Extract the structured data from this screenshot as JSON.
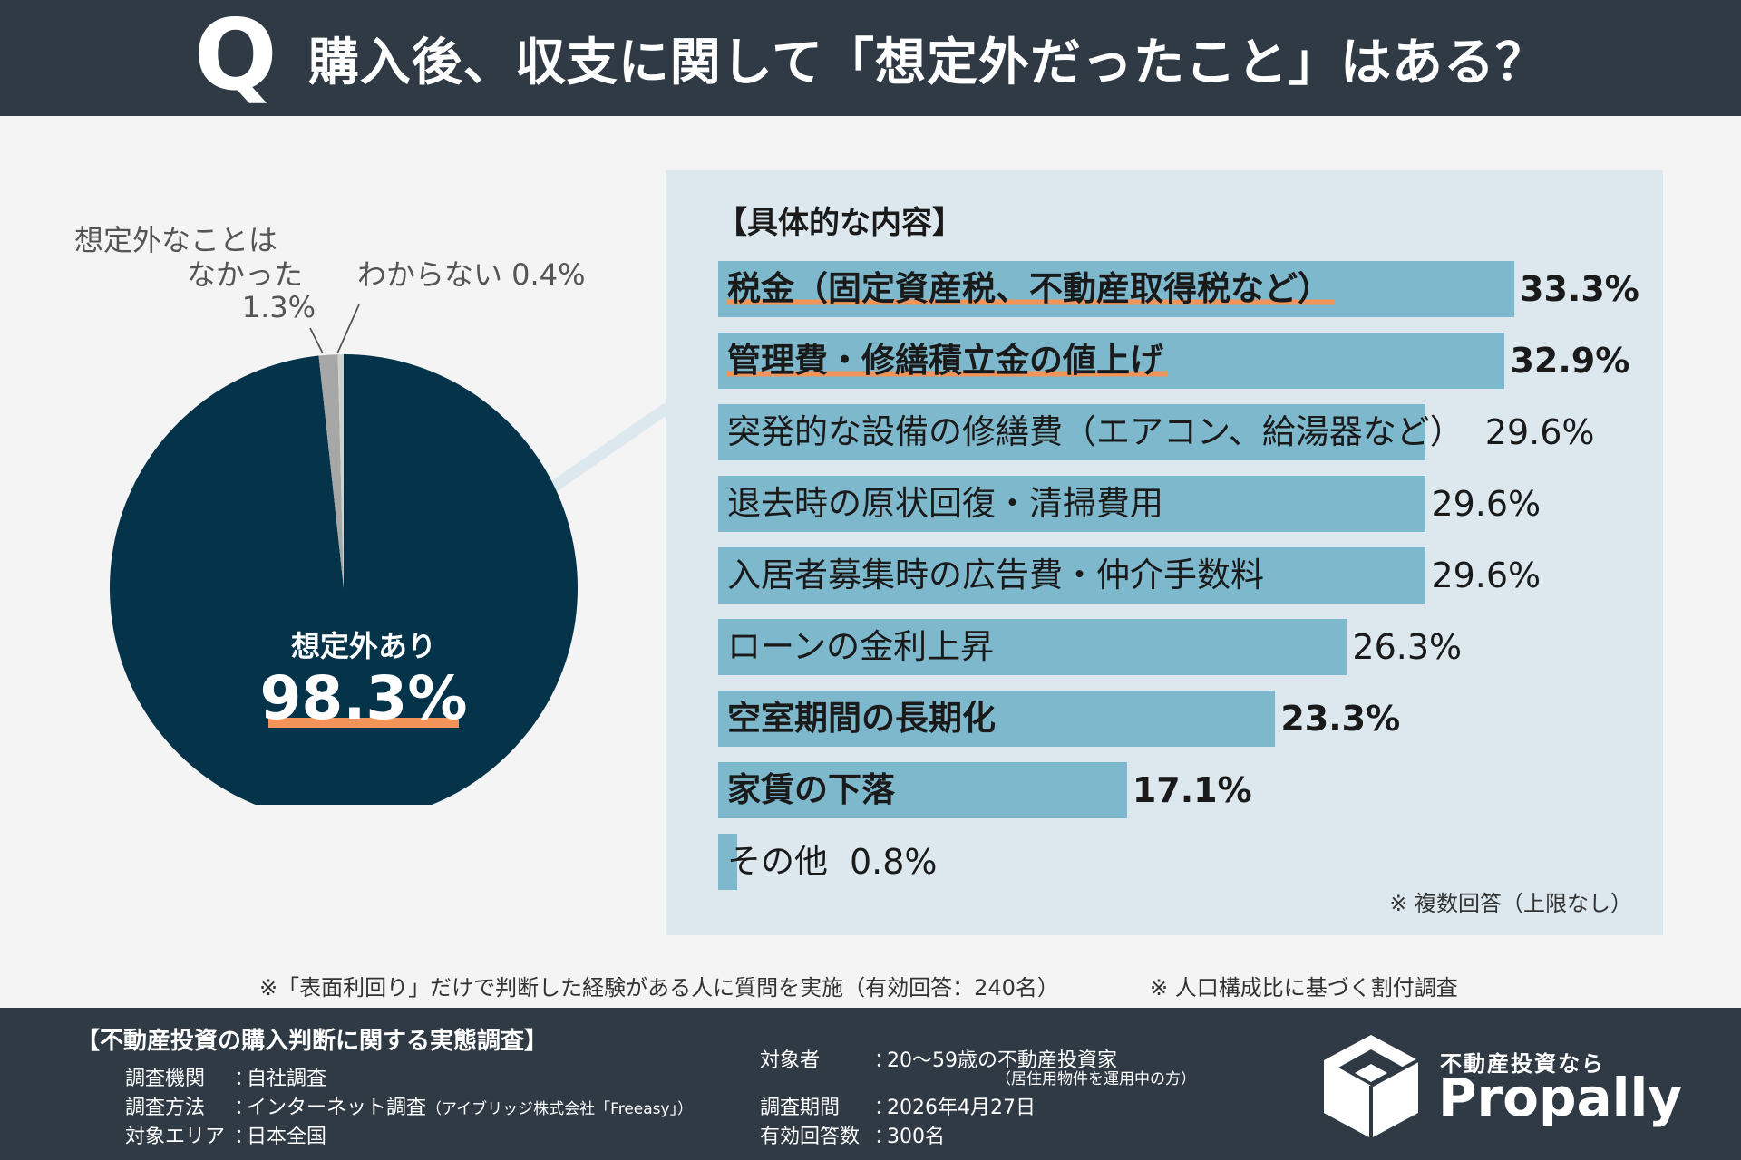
{
  "header": {
    "q_mark": "Q",
    "title": "購入後、収支に関して「想定外だったこと」はある？"
  },
  "colors": {
    "header_bg": "#2f3a44",
    "pie_main": "#04334a",
    "pie_none": "#a7a7a7",
    "pie_unknown": "#d0d0d0",
    "bar": "#7db8cc",
    "panel_bg": "#dce8ee",
    "highlight": "#f2935a"
  },
  "pie": {
    "main_label": "想定外あり",
    "main_value": "98.3%",
    "none_label_line1": "想定外なことは",
    "none_label_line2": "なかった",
    "none_value": "1.3%",
    "unknown_label": "わからない 0.4%"
  },
  "details": {
    "title": "【具体的な内容】",
    "note": "※ 複数回答（上限なし）"
  },
  "chart_data": [
    {
      "type": "pie",
      "labels": [
        "想定外あり",
        "想定外なことはなかった",
        "わからない"
      ],
      "values": [
        98.3,
        1.3,
        0.4
      ],
      "colors": [
        "#04334a",
        "#a7a7a7",
        "#d0d0d0"
      ]
    },
    {
      "type": "bar",
      "orientation": "horizontal",
      "title": "【具体的な内容】",
      "categories": [
        "税金（固定資産税、不動産取得税など）",
        "管理費・修繕積立金の値上げ",
        "突発的な設備の修繕費（エアコン、給湯器など）",
        "退去時の原状回復・清掃費用",
        "入居者募集時の広告費・仲介手数料",
        "ローンの金利上昇",
        "空室期間の長期化",
        "家賃の下落",
        "その他"
      ],
      "values": [
        33.3,
        32.9,
        29.6,
        29.6,
        29.6,
        26.3,
        23.3,
        17.1,
        0.8
      ],
      "value_labels": [
        "33.3%",
        "32.9%",
        "29.6%",
        "29.6%",
        "29.6%",
        "26.3%",
        "23.3%",
        "17.1%",
        "0.8%"
      ],
      "bold": [
        true,
        true,
        false,
        false,
        false,
        false,
        true,
        true,
        false
      ],
      "highlighted": [
        true,
        true,
        false,
        false,
        false,
        false,
        false,
        false,
        false
      ],
      "xlim": [
        0,
        33.3
      ]
    }
  ],
  "footnotes": {
    "left": "※「表面利回り」だけで判断した経験がある人に質問を実施（有効回答：240名）",
    "right": "※ 人口構成比に基づく割付調査"
  },
  "footer": {
    "survey_title": "【不動産投資の購入判断に関する実態調査】",
    "agency_key": "調査機関",
    "agency_value": "自社調査",
    "method_key": "調査方法",
    "method_value": "インターネット調査",
    "method_detail": "（アイブリッジ株式会社「Freeasy」）",
    "area_key": "対象エリア",
    "area_value": "日本全国",
    "target_key": "対象者",
    "target_value": "20～59歳の不動産投資家",
    "target_sub": "（居住用物件を運用中の方）",
    "period_key": "調査期間",
    "period_value": "2026年4月27日",
    "responses_key": "有効回答数",
    "responses_value": "300名",
    "brand_sub": "不動産投資なら",
    "brand_name": "Propally"
  }
}
